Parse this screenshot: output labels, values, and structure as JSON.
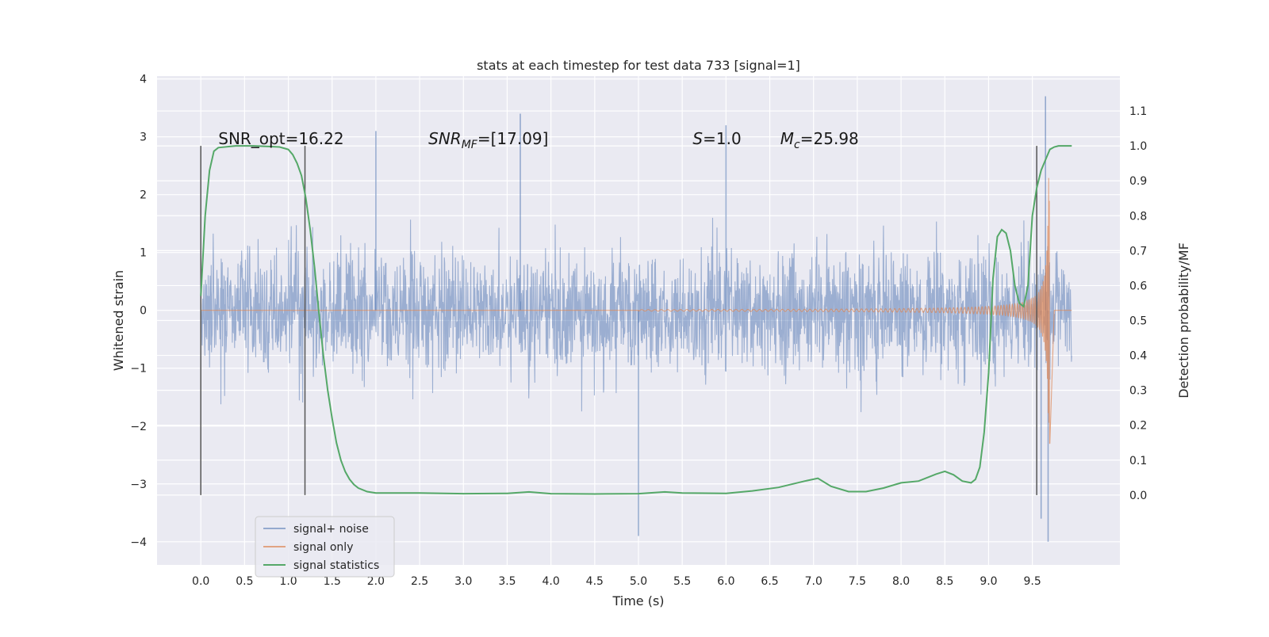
{
  "chart_data": {
    "type": "line",
    "title": "stats at each timestep for test data 733 [signal=1]",
    "xlabel": "Time (s)",
    "ylabel_left": "Whitened strain",
    "ylabel_right": "Detection probability/MF",
    "xlim": [
      -0.5,
      10.5
    ],
    "ylim_left": [
      -4.4,
      4.05
    ],
    "ylim_right": [
      -0.2,
      1.2
    ],
    "x_ticks": [
      0.0,
      0.5,
      1.0,
      1.5,
      2.0,
      2.5,
      3.0,
      3.5,
      4.0,
      4.5,
      5.0,
      5.5,
      6.0,
      6.5,
      7.0,
      7.5,
      8.0,
      8.5,
      9.0,
      9.5
    ],
    "x_tick_labels": [
      "0.0",
      "0.5",
      "1.0",
      "1.5",
      "2.0",
      "2.5",
      "3.0",
      "3.5",
      "4.0",
      "4.5",
      "5.0",
      "5.5",
      "6.0",
      "6.5",
      "7.0",
      "7.5",
      "8.0",
      "8.5",
      "9.0",
      "9.5"
    ],
    "y_left_ticks": [
      -4,
      -3,
      -2,
      -1,
      0,
      1,
      2,
      3,
      4
    ],
    "y_left_tick_labels": [
      "−4",
      "−3",
      "−2",
      "−1",
      "0",
      "1",
      "2",
      "3",
      "4"
    ],
    "y_right_ticks": [
      0.0,
      0.1,
      0.2,
      0.3,
      0.4,
      0.5,
      0.6,
      0.7,
      0.8,
      0.9,
      1.0,
      1.1
    ],
    "y_right_tick_labels": [
      "0.0",
      "0.1",
      "0.2",
      "0.3",
      "0.4",
      "0.5",
      "0.6",
      "0.7",
      "0.8",
      "0.9",
      "1.0",
      "1.1"
    ],
    "grid": true,
    "legend_position": "lower-left",
    "series": [
      {
        "name": "signal+ noise",
        "axis": "left",
        "color": "#4c72b0",
        "description_values": "noisy strain, roughly uniform amplitude about ±1.5 with spikes to ±3 over 0–9.95 s",
        "envelope": {
          "t": [
            0,
            9.95
          ],
          "amplitude": 1.6
        },
        "spikes": [
          [
            2.0,
            3.1
          ],
          [
            3.65,
            3.4
          ],
          [
            5.0,
            -3.9
          ],
          [
            6.0,
            3.2
          ],
          [
            9.6,
            -3.6
          ],
          [
            9.65,
            3.7
          ],
          [
            9.68,
            -4.0
          ]
        ]
      },
      {
        "name": "signal only",
        "axis": "left",
        "color": "#dd8452",
        "description_values": "chirp starting near 5 s, amplitude growing rapidly towards merger at ~9.7 s",
        "chirp": {
          "t_start": 5.0,
          "t_merge": 9.7,
          "t_end": 9.95,
          "peak_amplitude": 2.3
        }
      },
      {
        "name": "signal statistics",
        "axis": "right",
        "color": "#55a868",
        "x": [
          0.0,
          0.05,
          0.1,
          0.15,
          0.2,
          0.4,
          0.6,
          0.8,
          0.9,
          1.0,
          1.05,
          1.1,
          1.15,
          1.2,
          1.25,
          1.3,
          1.35,
          1.4,
          1.45,
          1.5,
          1.55,
          1.6,
          1.65,
          1.7,
          1.75,
          1.8,
          1.9,
          2.0,
          2.5,
          3.0,
          3.5,
          3.75,
          4.0,
          4.5,
          5.0,
          5.3,
          5.5,
          6.0,
          6.3,
          6.6,
          6.9,
          7.05,
          7.2,
          7.4,
          7.6,
          7.8,
          8.0,
          8.2,
          8.4,
          8.5,
          8.6,
          8.7,
          8.8,
          8.85,
          8.9,
          8.95,
          9.0,
          9.05,
          9.1,
          9.15,
          9.2,
          9.25,
          9.3,
          9.35,
          9.4,
          9.45,
          9.5,
          9.55,
          9.6,
          9.65,
          9.7,
          9.75,
          9.8,
          9.9,
          9.95
        ],
        "y": [
          0.57,
          0.8,
          0.93,
          0.985,
          0.995,
          1.0,
          1.0,
          0.998,
          0.997,
          0.99,
          0.975,
          0.95,
          0.915,
          0.85,
          0.76,
          0.65,
          0.52,
          0.4,
          0.3,
          0.22,
          0.15,
          0.1,
          0.067,
          0.045,
          0.03,
          0.02,
          0.01,
          0.006,
          0.006,
          0.004,
          0.005,
          0.009,
          0.004,
          0.003,
          0.004,
          0.009,
          0.006,
          0.005,
          0.012,
          0.022,
          0.04,
          0.048,
          0.025,
          0.01,
          0.01,
          0.02,
          0.035,
          0.04,
          0.06,
          0.068,
          0.058,
          0.04,
          0.035,
          0.045,
          0.08,
          0.18,
          0.35,
          0.62,
          0.74,
          0.76,
          0.75,
          0.7,
          0.6,
          0.55,
          0.54,
          0.6,
          0.8,
          0.88,
          0.93,
          0.96,
          0.99,
          0.997,
          1.0,
          1.0,
          1.0
        ]
      }
    ],
    "vertical_lines": [
      0.0,
      1.19,
      9.55
    ],
    "annotations": [
      {
        "x": 0.2,
        "y": 2.87,
        "parts": [
          {
            "text": "SNR_opt=16.22",
            "style": "normal"
          }
        ]
      },
      {
        "x": 2.6,
        "y": 2.87,
        "parts": [
          {
            "text": "SNR",
            "style": "italic"
          },
          {
            "text": "MF",
            "style": "italic-sub"
          },
          {
            "text": "=[17.09]",
            "style": "normal"
          }
        ]
      },
      {
        "x": 5.62,
        "y": 2.87,
        "parts": [
          {
            "text": "S",
            "style": "italic"
          },
          {
            "text": "=1.0",
            "style": "normal"
          }
        ]
      },
      {
        "x": 6.62,
        "y": 2.87,
        "parts": [
          {
            "text": "M",
            "style": "italic"
          },
          {
            "text": "c",
            "style": "italic-sub"
          },
          {
            "text": "=25.98",
            "style": "normal"
          }
        ]
      }
    ]
  }
}
